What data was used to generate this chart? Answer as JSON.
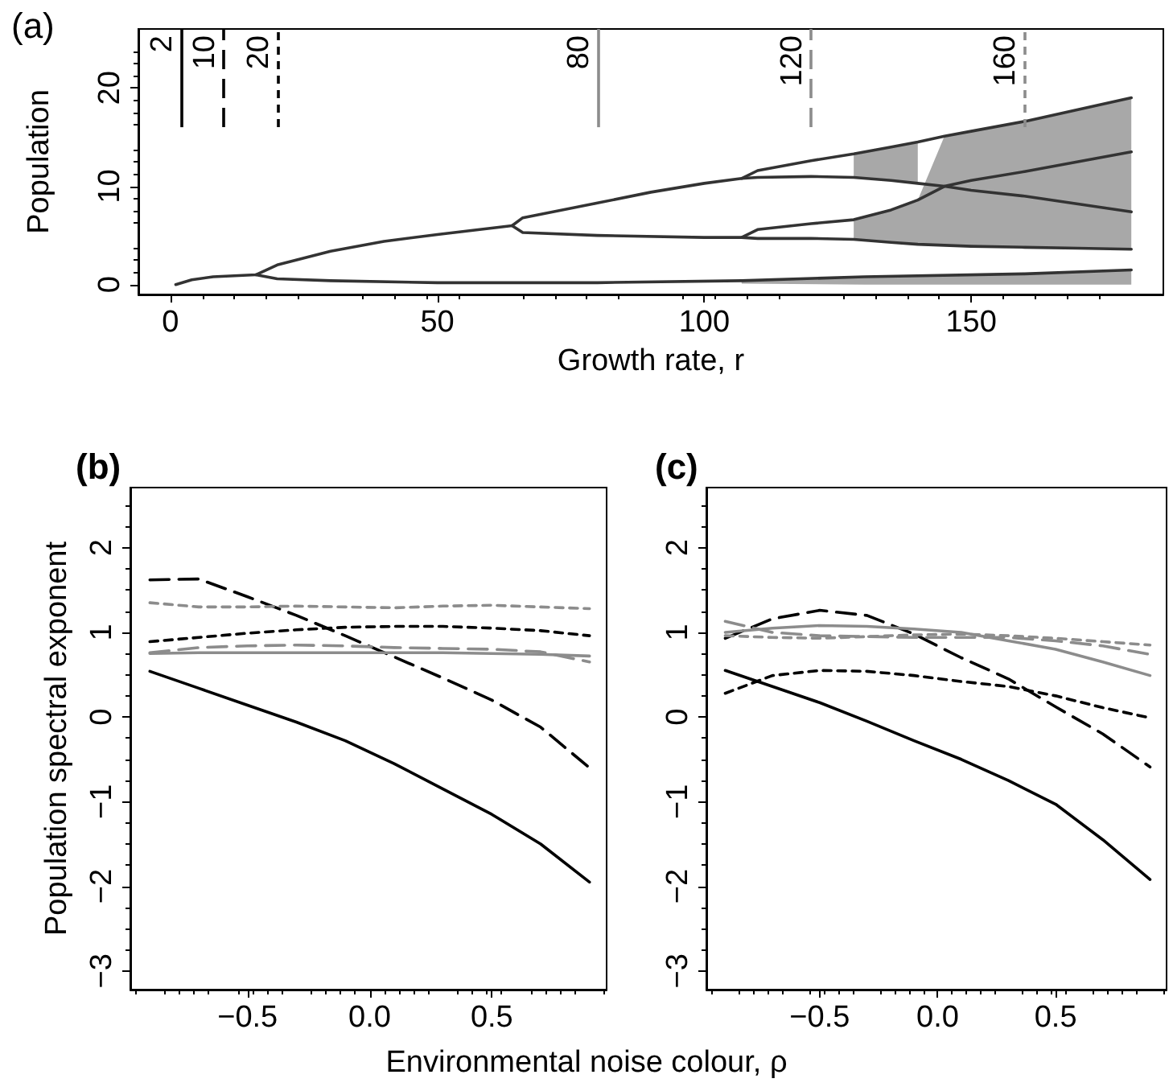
{
  "chart_data": [
    {
      "type": "line",
      "title": "(a)",
      "xlabel": "Growth rate, r",
      "ylabel": "Population",
      "xlim": [
        -6,
        186
      ],
      "ylim": [
        -1,
        26
      ],
      "xticks": [
        0,
        50,
        100,
        150
      ],
      "yticks": [
        0,
        10,
        20
      ],
      "grid": false,
      "marker": "none",
      "series": [
        {
          "color": "#333333",
          "x": [
            1,
            4,
            8,
            12,
            16,
            20,
            30,
            40,
            50,
            64,
            66,
            80,
            90,
            100,
            107,
            110,
            120,
            128,
            135,
            140,
            145,
            150,
            160,
            170,
            180
          ],
          "values": [
            0,
            0.5,
            0.8,
            0.9,
            1,
            2.0,
            3.4,
            4.4,
            5.1,
            6.0,
            6.8,
            8.3,
            9.4,
            10.3,
            10.8,
            11.6,
            12.6,
            13.3,
            14,
            14.5,
            15.1,
            15.6,
            16.6,
            17.8,
            19
          ]
        },
        {
          "color": "#333333",
          "x": [
            16,
            20,
            30,
            50,
            80,
            107,
            130,
            160,
            180
          ],
          "values": [
            1,
            0.6,
            0.4,
            0.2,
            0.2,
            0.4,
            0.8,
            1.1,
            1.5
          ],
          "lower": [
            null,
            null,
            null,
            null,
            null,
            0.1,
            0,
            0,
            0
          ],
          "upper": [
            null,
            null,
            null,
            null,
            null,
            0.4,
            0.8,
            1.1,
            1.5
          ]
        },
        {
          "color": "#333333",
          "x": [
            64,
            66,
            80,
            100,
            107,
            110,
            120,
            128,
            135,
            140,
            145,
            150,
            160,
            170,
            180
          ],
          "values": [
            6,
            5.3,
            5.0,
            4.8,
            4.8,
            4.7,
            4.7,
            4.6,
            4.3,
            4.1,
            4.0,
            3.9,
            3.8,
            3.7,
            3.6
          ],
          "lower": [
            null,
            null,
            null,
            null,
            null,
            null,
            null,
            4.6,
            4.3,
            4.1,
            4.0,
            3.9,
            3.8,
            3.7,
            3.6
          ],
          "upper": [
            null,
            null,
            null,
            null,
            null,
            null,
            null,
            6.6,
            7.6,
            8.6,
            15.1,
            15.6,
            16.6,
            17.8,
            19
          ]
        },
        {
          "color": "#333333",
          "x": [
            107,
            110,
            120,
            128,
            135,
            140,
            145,
            150,
            160,
            170,
            180
          ],
          "values": [
            10.8,
            10.9,
            11.0,
            10.9,
            10.6,
            10.3,
            10,
            9.6,
            9,
            8.2,
            7.4
          ],
          "lower": [
            null,
            null,
            null,
            10.9,
            10.6,
            10.3,
            null,
            null,
            null,
            null,
            null
          ],
          "upper": [
            null,
            null,
            null,
            13.3,
            14,
            14.5,
            null,
            null,
            null,
            null,
            null
          ]
        },
        {
          "color": "#333333",
          "x": [
            107,
            110,
            120,
            128,
            135,
            140,
            145,
            150,
            160,
            170,
            180
          ],
          "values": [
            4.8,
            5.6,
            6.2,
            6.6,
            7.6,
            8.6,
            10,
            10.6,
            11.5,
            12.5,
            13.5
          ]
        }
      ],
      "ref_lines": [
        {
          "axis": "x",
          "value": 2,
          "label": "2",
          "color": "#000000",
          "line_style": "solid"
        },
        {
          "axis": "x",
          "value": 10,
          "label": "10",
          "color": "#000000",
          "line_style": "longdash"
        },
        {
          "axis": "x",
          "value": 20,
          "label": "20",
          "color": "#000000",
          "line_style": "dashed"
        },
        {
          "axis": "x",
          "value": 80,
          "label": "80",
          "color": "#8c8c8c",
          "line_style": "solid"
        },
        {
          "axis": "x",
          "value": 120,
          "label": "120",
          "color": "#8c8c8c",
          "line_style": "longdash"
        },
        {
          "axis": "x",
          "value": 160,
          "label": "160",
          "color": "#8c8c8c",
          "line_style": "dashed"
        }
      ]
    },
    {
      "type": "line",
      "title": "(b)",
      "xlabel": "Environmental noise colour, ρ",
      "ylabel": "Population spectral exponent",
      "xlim": [
        -0.98,
        0.97
      ],
      "ylim": [
        -3.22,
        2.71
      ],
      "xticks": [
        {
          "value": -0.5,
          "label": "−0.5"
        },
        {
          "value": 0,
          "label": "0.0"
        },
        {
          "value": 0.5,
          "label": "0.5"
        }
      ],
      "yticks": [
        {
          "value": -3,
          "label": "−3"
        },
        {
          "value": -2,
          "label": "−2"
        },
        {
          "value": -1,
          "label": "−1"
        },
        0,
        1,
        2
      ],
      "grid": false,
      "marker": "none",
      "x": [
        -0.9,
        -0.7,
        -0.5,
        -0.3,
        -0.1,
        0.1,
        0.3,
        0.5,
        0.7,
        0.9
      ],
      "series": [
        {
          "color": "#000000",
          "line_style": "solid",
          "values": [
            0.54,
            0.34,
            0.14,
            -0.06,
            -0.28,
            -0.55,
            -0.85,
            -1.15,
            -1.5,
            -1.95
          ]
        },
        {
          "color": "#000000",
          "line_style": "longdash",
          "values": [
            1.62,
            1.63,
            1.42,
            1.2,
            0.96,
            0.71,
            0.46,
            0.2,
            -0.12,
            -0.6
          ]
        },
        {
          "color": "#000000",
          "line_style": "dashed",
          "values": [
            0.89,
            0.94,
            0.99,
            1.03,
            1.06,
            1.07,
            1.07,
            1.05,
            1.02,
            0.96
          ]
        },
        {
          "color": "#8c8c8c",
          "line_style": "solid",
          "values": [
            0.75,
            0.76,
            0.76,
            0.76,
            0.76,
            0.76,
            0.76,
            0.75,
            0.74,
            0.72
          ]
        },
        {
          "color": "#8c8c8c",
          "line_style": "longdash",
          "values": [
            0.76,
            0.82,
            0.84,
            0.85,
            0.84,
            0.82,
            0.81,
            0.8,
            0.77,
            0.65
          ]
        },
        {
          "color": "#8c8c8c",
          "line_style": "dashed",
          "values": [
            1.35,
            1.3,
            1.3,
            1.31,
            1.3,
            1.29,
            1.31,
            1.32,
            1.3,
            1.28
          ]
        }
      ]
    },
    {
      "type": "line",
      "title": "(c)",
      "xlim": [
        -0.98,
        0.97
      ],
      "ylim": [
        -3.22,
        2.71
      ],
      "xticks": [
        {
          "value": -0.5,
          "label": "−0.5"
        },
        {
          "value": 0,
          "label": "0.0"
        },
        {
          "value": 0.5,
          "label": "0.5"
        }
      ],
      "yticks": [
        {
          "value": -3,
          "label": "−3"
        },
        {
          "value": -2,
          "label": "−2"
        },
        {
          "value": -1,
          "label": "−1"
        },
        0,
        1,
        2
      ],
      "grid": false,
      "marker": "none",
      "x": [
        -0.9,
        -0.7,
        -0.5,
        -0.3,
        -0.1,
        0.1,
        0.3,
        0.5,
        0.7,
        0.9
      ],
      "series": [
        {
          "color": "#000000",
          "line_style": "solid",
          "values": [
            0.55,
            0.36,
            0.17,
            -0.05,
            -0.28,
            -0.5,
            -0.75,
            -1.03,
            -1.45,
            -1.92
          ]
        },
        {
          "color": "#000000",
          "line_style": "longdash",
          "values": [
            0.93,
            1.16,
            1.26,
            1.2,
            0.98,
            0.7,
            0.45,
            0.12,
            -0.2,
            -0.59
          ]
        },
        {
          "color": "#000000",
          "line_style": "dashed",
          "values": [
            0.28,
            0.49,
            0.55,
            0.54,
            0.49,
            0.42,
            0.36,
            0.25,
            0.11,
            -0.01
          ]
        },
        {
          "color": "#8c8c8c",
          "line_style": "solid",
          "values": [
            1.0,
            1.05,
            1.08,
            1.07,
            1.04,
            1.0,
            0.9,
            0.8,
            0.65,
            0.49
          ]
        },
        {
          "color": "#8c8c8c",
          "line_style": "longdash",
          "values": [
            1.13,
            1.0,
            0.96,
            0.95,
            0.94,
            0.94,
            0.94,
            0.9,
            0.84,
            0.74
          ]
        },
        {
          "color": "#8c8c8c",
          "line_style": "dashed",
          "values": [
            0.96,
            0.94,
            0.93,
            0.95,
            0.97,
            0.98,
            0.96,
            0.93,
            0.89,
            0.85
          ]
        }
      ]
    }
  ]
}
